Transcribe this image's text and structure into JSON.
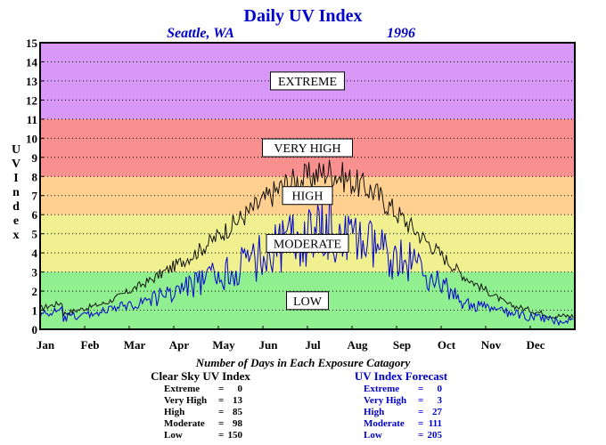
{
  "chart_data": {
    "type": "line",
    "title": "Daily UV Index",
    "location": "Seattle, WA",
    "year": "1996",
    "ylabel": "UV Index",
    "ylim": [
      0,
      15
    ],
    "yticks": [
      "0",
      "1",
      "2",
      "3",
      "4",
      "5",
      "6",
      "7",
      "8",
      "9",
      "10",
      "11",
      "12",
      "13",
      "14",
      "15"
    ],
    "x_categories": [
      "Jan",
      "Feb",
      "Mar",
      "Apr",
      "May",
      "Jun",
      "Jul",
      "Aug",
      "Sep",
      "Oct",
      "Nov",
      "Dec"
    ],
    "bands": [
      {
        "label": "LOW",
        "from": 0,
        "to": 3,
        "color": "#90f090"
      },
      {
        "label": "MODERATE",
        "from": 3,
        "to": 6,
        "color": "#f0f090"
      },
      {
        "label": "HIGH",
        "from": 6,
        "to": 8,
        "color": "#ffd090"
      },
      {
        "label": "VERY HIGH",
        "from": 8,
        "to": 11,
        "color": "#f89090"
      },
      {
        "label": "EXTREME",
        "from": 11,
        "to": 15,
        "color": "#d898f8"
      }
    ],
    "series": [
      {
        "name": "Clear Sky UV Index",
        "color": "#000000",
        "monthly_values": [
          0.8,
          1.4,
          2.6,
          4.0,
          5.8,
          7.6,
          8.3,
          7.2,
          5.0,
          2.8,
          1.3,
          0.7
        ]
      },
      {
        "name": "UV Index Forecast",
        "color": "#0000cc",
        "monthly_values": [
          0.4,
          0.8,
          1.6,
          2.7,
          3.9,
          5.6,
          6.4,
          5.2,
          4.0,
          1.3,
          0.7,
          0.3
        ]
      }
    ],
    "caption": "Number of Days in Each Exposure Catagory",
    "clear_sky_title": "Clear Sky UV Index",
    "forecast_title": "UV Index Forecast",
    "clear_sky_stats": [
      {
        "label": "Extreme",
        "sep": "=",
        "value": "0"
      },
      {
        "label": "Very High",
        "sep": "=",
        "value": "13"
      },
      {
        "label": "High",
        "sep": "=",
        "value": "85"
      },
      {
        "label": "Moderate",
        "sep": "=",
        "value": "98"
      },
      {
        "label": "Low",
        "sep": "=",
        "value": "150"
      }
    ],
    "forecast_stats": [
      {
        "label": "Extreme",
        "sep": "=",
        "value": "0"
      },
      {
        "label": "Very High",
        "sep": "=",
        "value": "3"
      },
      {
        "label": "High",
        "sep": "=",
        "value": "27"
      },
      {
        "label": "Moderate",
        "sep": "=",
        "value": "111"
      },
      {
        "label": "Low",
        "sep": "=",
        "value": "205"
      }
    ]
  }
}
